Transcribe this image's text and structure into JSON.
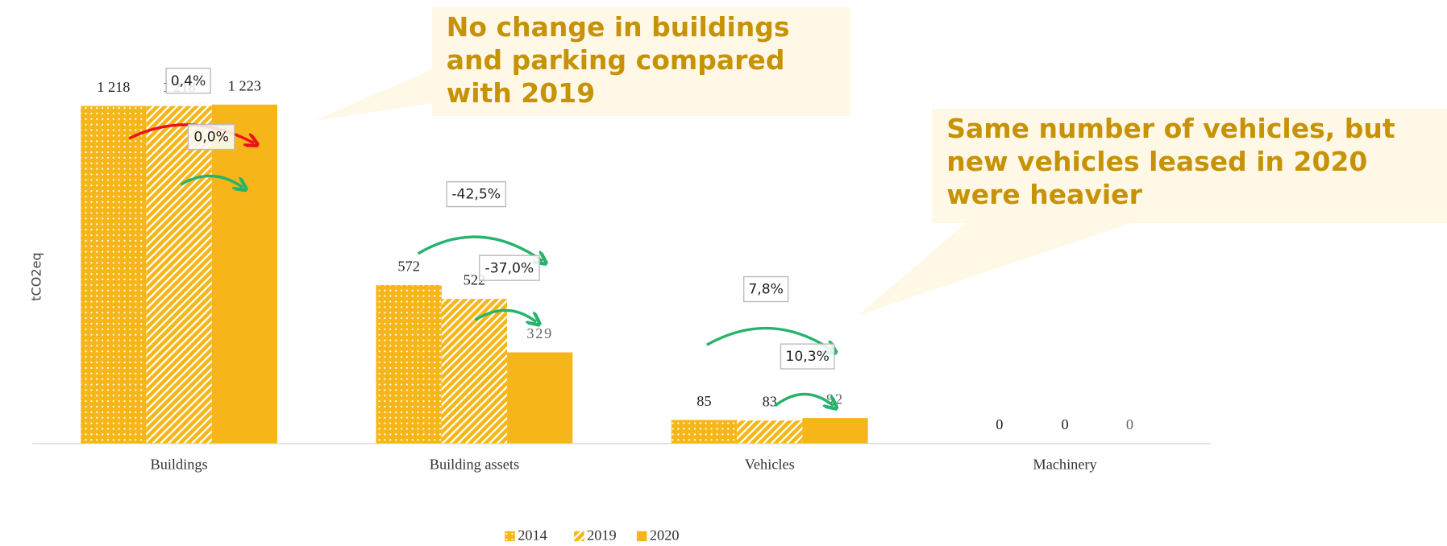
{
  "chart_data": {
    "type": "bar",
    "y_label": "tCO2eq",
    "categories": [
      "Buildings",
      "Building assets",
      "Vehicles",
      "Machinery"
    ],
    "series": [
      {
        "name": "2014",
        "color": "#f6b619",
        "pattern": "dots",
        "values": [
          1218,
          572,
          85,
          0
        ],
        "value_labels": [
          "1 218",
          "572",
          "85",
          "0"
        ]
      },
      {
        "name": "2019",
        "color": "#f6b619",
        "pattern": "hatch",
        "values": [
          1218,
          522,
          83,
          0
        ],
        "value_labels": [
          "1 218",
          "522",
          "83",
          "0"
        ]
      },
      {
        "name": "2020",
        "color": "#f6b619",
        "pattern": "solid",
        "values": [
          1223,
          329,
          92,
          0
        ],
        "value_labels": [
          "1 223",
          "329",
          "92",
          "0"
        ]
      }
    ],
    "ylim": [
      0,
      1600
    ],
    "annotations": [
      {
        "text": "0,4%"
      },
      {
        "text": "0,0%"
      },
      {
        "text": "-42,5%"
      },
      {
        "text": "-37,0%"
      },
      {
        "text": "7,8%"
      },
      {
        "text": "10,3%"
      }
    ],
    "callouts": [
      {
        "text": "No change in buildings and parking compared with 2019"
      },
      {
        "text": "Same number of vehicles, but new vehicles leased in 2020 were heavier"
      }
    ]
  }
}
